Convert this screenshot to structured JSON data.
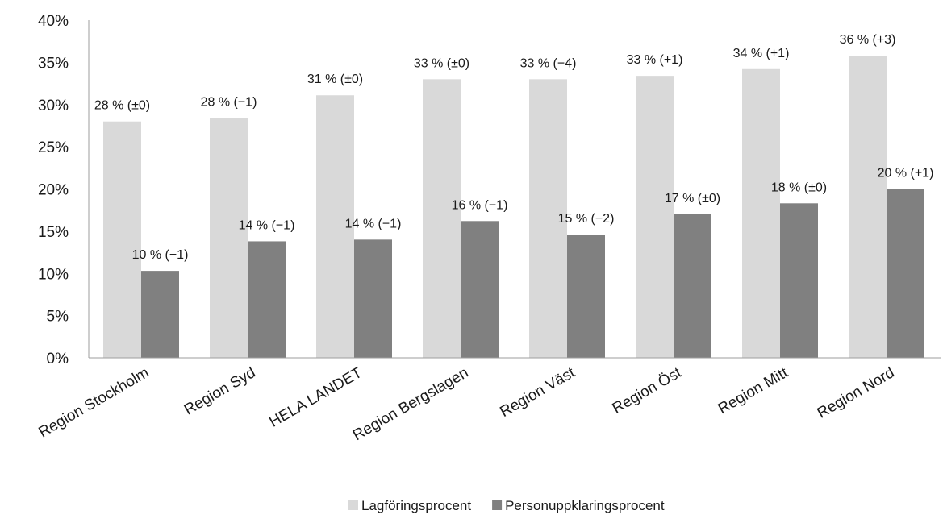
{
  "chart_data": {
    "type": "bar",
    "categories": [
      "Region Stockholm",
      "Region Syd",
      "HELA LANDET",
      "Region Bergslagen",
      "Region Väst",
      "Region Öst",
      "Region Mitt",
      "Region Nord"
    ],
    "series": [
      {
        "name": "Lagföringsprocent",
        "color": "#d9d9d9",
        "values": [
          28,
          28.4,
          31.1,
          33,
          33,
          33.4,
          34.2,
          35.8
        ],
        "labels": [
          "28 % (±0)",
          "28 % (−1)",
          "31 % (±0)",
          "33 % (±0)",
          "33 % (−4)",
          "33 % (+1)",
          "34 % (+1)",
          "36 % (+3)"
        ]
      },
      {
        "name": "Personuppklaringsprocent",
        "color": "#808080",
        "values": [
          10.3,
          13.8,
          14,
          16.2,
          14.6,
          17,
          18.3,
          20
        ],
        "labels": [
          "10 % (−1)",
          "14 % (−1)",
          "14 % (−1)",
          "16 % (−1)",
          "15 % (−2)",
          "17 % (±0)",
          "18 % (±0)",
          "20 % (+1)"
        ]
      }
    ],
    "yticks": [
      "0%",
      "5%",
      "10%",
      "15%",
      "20%",
      "25%",
      "30%",
      "35%",
      "40%"
    ],
    "ylim": [
      0,
      40
    ],
    "grid": false,
    "legend_position": "bottom"
  }
}
